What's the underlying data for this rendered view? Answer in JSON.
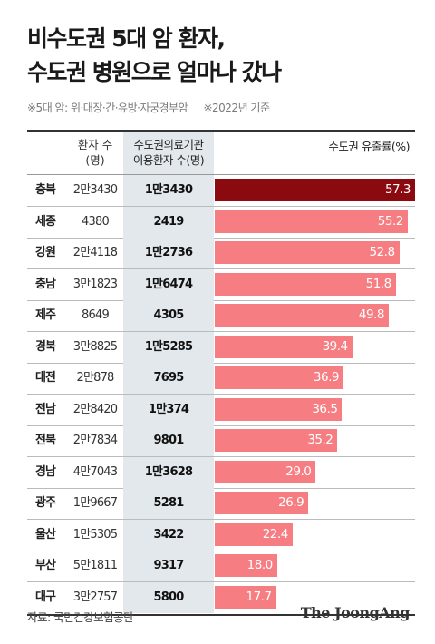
{
  "title": {
    "line1": "비수도권 5대 암 환자,",
    "line2": "수도권 병원으로 얼마나 갔나"
  },
  "notes": {
    "cancers": "※5대 암: 위·대장·간·유방·자궁경부암",
    "basis": "※2022년 기준"
  },
  "columns": {
    "total_line1": "환자 수",
    "total_line2": "(명)",
    "outflow_line1": "수도권의료기관",
    "outflow_line2": "이용환자 수(명)",
    "rate": "수도권 유출률(%)"
  },
  "source": "자료: 국민건강보험공단",
  "brand": "The JoongAng",
  "colors": {
    "highlight_bar": "#8b0a10",
    "bar": "#f67d82",
    "outflow_column_bg": "#e3e8ec"
  },
  "chart_data": {
    "type": "bar",
    "orientation": "horizontal",
    "title": "비수도권 5대 암 환자, 수도권 병원으로 얼마나 갔나",
    "ylabel": "수도권 유출률(%)",
    "xlim": [
      0,
      57.3
    ],
    "categories": [
      "충북",
      "세종",
      "강원",
      "충남",
      "제주",
      "경북",
      "대전",
      "전남",
      "전북",
      "경남",
      "광주",
      "울산",
      "부산",
      "대구"
    ],
    "rows": [
      {
        "region": "충북",
        "total": "2만3430",
        "outflow": "1만3430",
        "rate": 57.3,
        "rate_label": "57.3"
      },
      {
        "region": "세종",
        "total": "4380",
        "outflow": "2419",
        "rate": 55.2,
        "rate_label": "55.2"
      },
      {
        "region": "강원",
        "total": "2만4118",
        "outflow": "1만2736",
        "rate": 52.8,
        "rate_label": "52.8"
      },
      {
        "region": "충남",
        "total": "3만1823",
        "outflow": "1만6474",
        "rate": 51.8,
        "rate_label": "51.8"
      },
      {
        "region": "제주",
        "total": "8649",
        "outflow": "4305",
        "rate": 49.8,
        "rate_label": "49.8"
      },
      {
        "region": "경북",
        "total": "3만8825",
        "outflow": "1만5285",
        "rate": 39.4,
        "rate_label": "39.4"
      },
      {
        "region": "대전",
        "total": "2만878",
        "outflow": "7695",
        "rate": 36.9,
        "rate_label": "36.9"
      },
      {
        "region": "전남",
        "total": "2만8420",
        "outflow": "1만374",
        "rate": 36.5,
        "rate_label": "36.5"
      },
      {
        "region": "전북",
        "total": "2만7834",
        "outflow": "9801",
        "rate": 35.2,
        "rate_label": "35.2"
      },
      {
        "region": "경남",
        "total": "4만7043",
        "outflow": "1만3628",
        "rate": 29.0,
        "rate_label": "29.0"
      },
      {
        "region": "광주",
        "total": "1만9667",
        "outflow": "5281",
        "rate": 26.9,
        "rate_label": "26.9"
      },
      {
        "region": "울산",
        "total": "1만5305",
        "outflow": "3422",
        "rate": 22.4,
        "rate_label": "22.4"
      },
      {
        "region": "부산",
        "total": "5만1811",
        "outflow": "9317",
        "rate": 18.0,
        "rate_label": "18.0"
      },
      {
        "region": "대구",
        "total": "3만2757",
        "outflow": "5800",
        "rate": 17.7,
        "rate_label": "17.7"
      }
    ]
  }
}
